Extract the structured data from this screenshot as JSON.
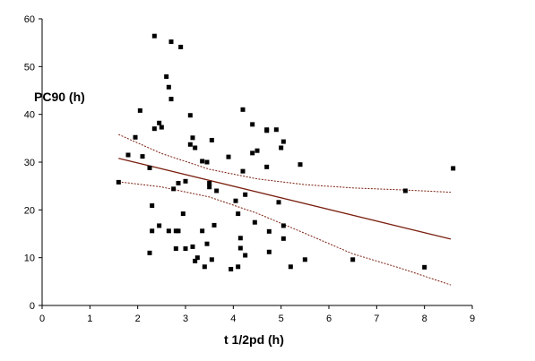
{
  "chart_data": {
    "type": "scatter",
    "title": "",
    "xlabel": "t 1/2pd (h)",
    "ylabel": "PC90 (h)",
    "xlim": [
      0,
      9
    ],
    "ylim": [
      0,
      60
    ],
    "x_ticks": [
      "0",
      "1",
      "2",
      "3",
      "4",
      "5",
      "6",
      "7",
      "8",
      "9"
    ],
    "y_ticks": [
      "0",
      "10",
      "20",
      "30",
      "40",
      "50",
      "60"
    ],
    "grid": false,
    "legend": "none",
    "colors": {
      "points": "#000000",
      "fit_line": "#7a1f0f",
      "ci_lines": "#7a1f0f",
      "axis": "#000000"
    },
    "series": [
      {
        "kind": "points",
        "x": [
          1.6,
          1.8,
          1.95,
          2.05,
          2.1,
          2.25,
          2.25,
          2.3,
          2.3,
          2.35,
          2.35,
          2.45,
          2.45,
          2.5,
          2.6,
          2.65,
          2.65,
          2.7,
          2.7,
          2.75,
          2.8,
          2.8,
          2.85,
          2.85,
          2.9,
          2.95,
          3.0,
          3.0,
          3.1,
          3.1,
          3.15,
          3.15,
          3.2,
          3.2,
          3.25,
          3.35,
          3.35,
          3.4,
          3.45,
          3.45,
          3.5,
          3.5,
          3.55,
          3.55,
          3.6,
          3.65,
          3.9,
          3.95,
          4.05,
          4.1,
          4.1,
          4.15,
          4.15,
          4.2,
          4.2,
          4.25,
          4.25,
          4.4,
          4.4,
          4.45,
          4.5,
          4.7,
          4.7,
          4.7,
          4.75,
          4.75,
          4.9,
          4.95,
          5.0,
          5.05,
          5.05,
          5.05,
          5.2,
          5.4,
          5.5,
          6.5,
          7.6,
          8.0,
          8.6
        ],
        "y": [
          25.8,
          31.5,
          35.2,
          40.8,
          31.2,
          28.8,
          11.0,
          20.9,
          15.6,
          56.4,
          37.0,
          16.7,
          38.2,
          37.3,
          47.9,
          15.6,
          45.7,
          43.2,
          55.2,
          24.4,
          15.6,
          11.9,
          25.6,
          15.6,
          54.1,
          19.2,
          26.0,
          11.9,
          39.8,
          33.7,
          35.1,
          12.3,
          9.3,
          33.0,
          10.0,
          15.6,
          30.2,
          8.1,
          30.0,
          12.9,
          24.8,
          25.6,
          34.6,
          9.6,
          16.8,
          24.0,
          31.1,
          7.6,
          21.9,
          19.2,
          8.1,
          14.1,
          12.0,
          41.0,
          28.1,
          23.2,
          10.5,
          31.9,
          37.9,
          17.4,
          32.4,
          36.8,
          36.6,
          29.0,
          11.2,
          15.5,
          36.8,
          21.6,
          33.0,
          34.3,
          16.7,
          14.0,
          8.1,
          29.5,
          9.6,
          9.6,
          24.0,
          8.0,
          28.7
        ]
      },
      {
        "kind": "regression",
        "x": [
          1.6,
          8.55
        ],
        "y": [
          30.8,
          13.9
        ]
      },
      {
        "kind": "ci_upper",
        "x": [
          1.6,
          2.5,
          3.5,
          4.5,
          5.5,
          6.5,
          7.5,
          8.55
        ],
        "y": [
          35.8,
          31.8,
          28.5,
          26.5,
          25.3,
          24.6,
          24.2,
          23.7
        ]
      },
      {
        "kind": "ci_lower",
        "x": [
          1.6,
          2.5,
          3.5,
          4.5,
          5.5,
          6.5,
          7.5,
          8.55
        ],
        "y": [
          25.9,
          24.8,
          22.7,
          19.3,
          15.1,
          10.8,
          7.8,
          4.3
        ]
      }
    ]
  }
}
